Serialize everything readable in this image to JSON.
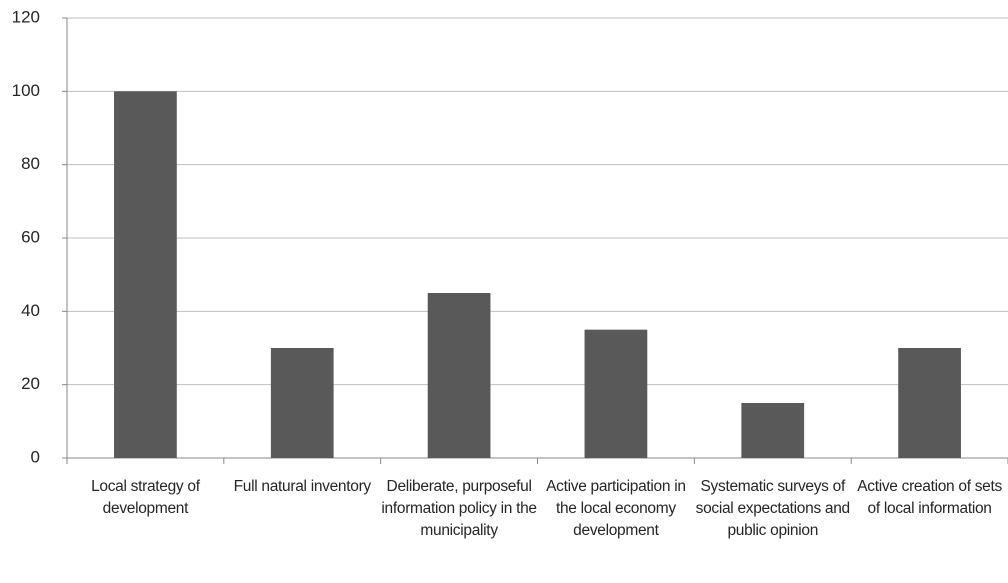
{
  "chart_data": {
    "type": "bar",
    "categories": [
      "Local strategy of development",
      "Full natural inventory",
      "Deliberate, purposeful information policy in the municipality",
      "Active participation in the local economy development",
      "Systematic surveys of social expectations and public opinion",
      "Active creation of sets of local information"
    ],
    "values": [
      100,
      30,
      45,
      35,
      15,
      30
    ],
    "color": "#595959",
    "ylim": [
      0,
      120
    ],
    "yticks": [
      0,
      20,
      40,
      60,
      80,
      100,
      120
    ],
    "grid": true
  }
}
